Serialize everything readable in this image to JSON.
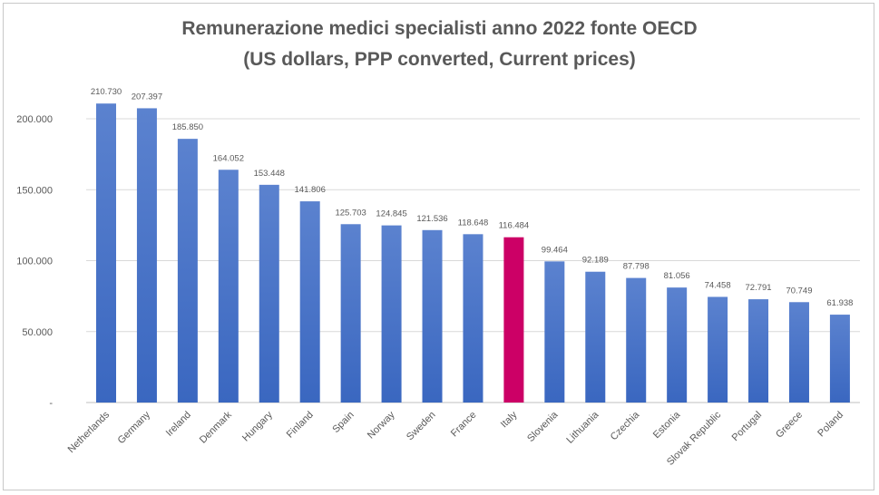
{
  "chart_data": {
    "type": "bar",
    "title": "Remunerazione medici specialisti anno 2022 fonte OECD",
    "subtitle": "(US dollars,  PPP converted, Current prices)",
    "xlabel": "",
    "ylabel": "",
    "ylim": [
      0,
      200000
    ],
    "yticks": [
      0,
      50000,
      100000,
      150000,
      200000
    ],
    "ytick_labels": [
      "-",
      "50.000",
      "100.000",
      "150.000",
      "200.000"
    ],
    "grid": true,
    "legend": "none",
    "categories": [
      "Netherlands",
      "Germany",
      "Ireland",
      "Denmark",
      "Hungary",
      "Finland",
      "Spain",
      "Norway",
      "Sweden",
      "France",
      "Italy",
      "Slovenia",
      "Lithuania",
      "Czechia",
      "Estonia",
      "Slovak Republic",
      "Portugal",
      "Greece",
      "Poland"
    ],
    "values": [
      210730,
      207397,
      185850,
      164052,
      153448,
      141806,
      125703,
      124845,
      121536,
      118648,
      116484,
      99464,
      92189,
      87798,
      81056,
      74458,
      72791,
      70749,
      61938
    ],
    "data_labels": [
      "210.730",
      "207.397",
      "185.850",
      "164.052",
      "153.448",
      "141.806",
      "125.703",
      "124.845",
      "121.536",
      "118.648",
      "116.484",
      "99.464",
      "92.189",
      "87.798",
      "81.056",
      "74.458",
      "72.791",
      "70.749",
      "61.938"
    ],
    "colors": {
      "default": "#4472c4",
      "highlight": "#cc0066",
      "highlight_category": "Italy"
    }
  }
}
